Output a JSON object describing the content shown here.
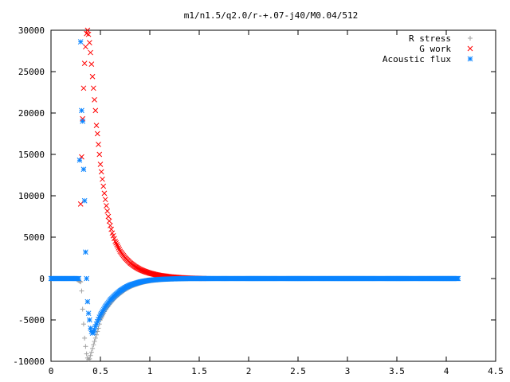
{
  "chart_data": {
    "type": "scatter",
    "title": "m1/n1.5/q2.0/r-+.07-j40/M0.04/512",
    "xlabel": "",
    "ylabel": "",
    "xlim": [
      0,
      4.5
    ],
    "ylim": [
      -10000,
      30000
    ],
    "x_ticks": [
      "0",
      "0.5",
      "1",
      "1.5",
      "2",
      "2.5",
      "3",
      "3.5",
      "4",
      "4.5"
    ],
    "y_ticks": [
      "-10000",
      "-5000",
      "0",
      "5000",
      "10000",
      "15000",
      "20000",
      "25000",
      "30000"
    ],
    "legend_position": "top-right",
    "grid": false,
    "series": [
      {
        "name": "R stress",
        "marker": "plus",
        "color": "#a0a0a0",
        "points": [
          [
            0.0,
            0
          ],
          [
            0.05,
            0
          ],
          [
            0.1,
            0
          ],
          [
            0.15,
            0
          ],
          [
            0.2,
            0
          ],
          [
            0.25,
            0
          ],
          [
            0.3,
            -400
          ],
          [
            0.31,
            -1500
          ],
          [
            0.32,
            -3700
          ],
          [
            0.33,
            -5500
          ],
          [
            0.34,
            -7200
          ],
          [
            0.35,
            -8200
          ],
          [
            0.36,
            -9100
          ],
          [
            0.37,
            -9600
          ],
          [
            0.38,
            -9800
          ],
          [
            0.39,
            -9700
          ],
          [
            0.41,
            -8900
          ],
          [
            0.43,
            -8000
          ],
          [
            0.45,
            -7200
          ],
          [
            0.48,
            -6000
          ],
          [
            0.5,
            -5000
          ],
          [
            0.55,
            -3800
          ],
          [
            0.6,
            -3000
          ],
          [
            0.65,
            -2300
          ],
          [
            0.7,
            -1800
          ],
          [
            0.75,
            -1350
          ],
          [
            0.8,
            -1000
          ],
          [
            0.85,
            -750
          ],
          [
            0.9,
            -550
          ],
          [
            0.95,
            -400
          ],
          [
            1.0,
            -280
          ],
          [
            1.05,
            -200
          ],
          [
            1.1,
            -140
          ],
          [
            1.2,
            -70
          ],
          [
            1.3,
            -30
          ],
          [
            1.4,
            -10
          ],
          [
            1.5,
            0
          ],
          [
            2.0,
            0
          ],
          [
            2.5,
            0
          ],
          [
            3.0,
            0
          ],
          [
            3.5,
            0
          ],
          [
            4.0,
            0
          ],
          [
            4.12,
            0
          ]
        ]
      },
      {
        "name": "G work",
        "marker": "cross",
        "color": "#ff0000",
        "points": [
          [
            0.3,
            9000
          ],
          [
            0.31,
            14700
          ],
          [
            0.32,
            19300
          ],
          [
            0.33,
            23000
          ],
          [
            0.34,
            26000
          ],
          [
            0.35,
            28000
          ],
          [
            0.36,
            29600
          ],
          [
            0.37,
            30000
          ],
          [
            0.38,
            29500
          ],
          [
            0.39,
            28500
          ],
          [
            0.4,
            27300
          ],
          [
            0.41,
            25900
          ],
          [
            0.42,
            24400
          ],
          [
            0.43,
            23000
          ],
          [
            0.44,
            21600
          ],
          [
            0.45,
            20300
          ],
          [
            0.46,
            18500
          ],
          [
            0.47,
            17500
          ],
          [
            0.48,
            16200
          ],
          [
            0.49,
            15000
          ],
          [
            0.5,
            13800
          ],
          [
            0.52,
            12000
          ],
          [
            0.54,
            10300
          ],
          [
            0.56,
            8800
          ],
          [
            0.58,
            7500
          ],
          [
            0.6,
            6400
          ],
          [
            0.62,
            5500
          ],
          [
            0.65,
            4500
          ],
          [
            0.7,
            3300
          ],
          [
            0.75,
            2500
          ],
          [
            0.8,
            1900
          ],
          [
            0.85,
            1450
          ],
          [
            0.9,
            1100
          ],
          [
            0.95,
            850
          ],
          [
            1.0,
            650
          ],
          [
            1.05,
            500
          ],
          [
            1.1,
            380
          ],
          [
            1.2,
            220
          ],
          [
            1.3,
            120
          ],
          [
            1.4,
            60
          ],
          [
            1.5,
            20
          ],
          [
            1.55,
            10
          ]
        ]
      },
      {
        "name": "Acoustic flux",
        "marker": "star",
        "color": "#0a84ff",
        "points": [
          [
            0.0,
            0
          ],
          [
            0.05,
            0
          ],
          [
            0.1,
            0
          ],
          [
            0.15,
            0
          ],
          [
            0.2,
            0
          ],
          [
            0.25,
            0
          ],
          [
            0.28,
            0
          ],
          [
            0.3,
            28600
          ],
          [
            0.31,
            20300
          ],
          [
            0.32,
            19000
          ],
          [
            0.33,
            13200
          ],
          [
            0.34,
            9400
          ],
          [
            0.35,
            3200
          ],
          [
            0.36,
            0
          ],
          [
            0.37,
            -2800
          ],
          [
            0.38,
            -4200
          ],
          [
            0.39,
            -5000
          ],
          [
            0.4,
            -6000
          ],
          [
            0.41,
            -6400
          ],
          [
            0.42,
            -6600
          ],
          [
            0.43,
            -6500
          ],
          [
            0.44,
            -6200
          ],
          [
            0.45,
            -5800
          ],
          [
            0.47,
            -5200
          ],
          [
            0.5,
            -4400
          ],
          [
            0.55,
            -3400
          ],
          [
            0.6,
            -2600
          ],
          [
            0.65,
            -2000
          ],
          [
            0.7,
            -1500
          ],
          [
            0.75,
            -1100
          ],
          [
            0.8,
            -800
          ],
          [
            0.85,
            -600
          ],
          [
            0.9,
            -420
          ],
          [
            0.95,
            -300
          ],
          [
            1.0,
            -200
          ],
          [
            1.1,
            -100
          ],
          [
            1.2,
            -50
          ],
          [
            1.3,
            -20
          ],
          [
            1.4,
            0
          ],
          [
            1.6,
            0
          ],
          [
            1.8,
            0
          ],
          [
            2.0,
            0
          ],
          [
            2.2,
            0
          ],
          [
            2.4,
            0
          ],
          [
            2.6,
            0
          ],
          [
            2.8,
            0
          ],
          [
            3.0,
            0
          ],
          [
            3.2,
            0
          ],
          [
            3.4,
            0
          ],
          [
            3.6,
            0
          ],
          [
            3.8,
            0
          ],
          [
            4.0,
            0
          ],
          [
            4.12,
            0
          ]
        ]
      }
    ]
  }
}
